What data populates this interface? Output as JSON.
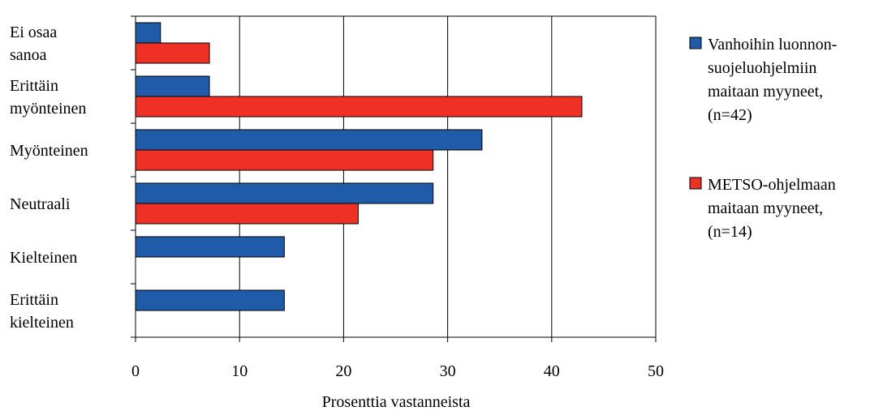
{
  "chart_data": {
    "type": "bar",
    "orientation": "horizontal",
    "categories": [
      [
        "Ei osaa",
        "sanoa"
      ],
      [
        "Erittäin",
        "myönteinen"
      ],
      [
        "Myönteinen"
      ],
      [
        "Neutraali"
      ],
      [
        "Kielteinen"
      ],
      [
        "Erittäin",
        "kielteinen"
      ]
    ],
    "series": [
      {
        "name_lines": [
          "Vanhoihin luonnon-",
          "suojeluohjelmiin",
          "maitaan myyneet,",
          "(n=42)"
        ],
        "color": "#1F5BA8",
        "values": [
          2.4,
          7.1,
          33.3,
          28.6,
          14.3,
          14.3
        ]
      },
      {
        "name_lines": [
          "METSO-ohjelmaan",
          "maitaan myyneet,",
          "(n=14)"
        ],
        "color": "#EE3124",
        "values": [
          7.1,
          42.9,
          28.6,
          21.4,
          0,
          0
        ]
      }
    ],
    "xlim": [
      0,
      50
    ],
    "xticks": [
      "0",
      "10",
      "20",
      "30",
      "40",
      "50"
    ],
    "xlabel": "Prosenttia vastanneista",
    "grid": "vertical",
    "legend_position": "right"
  }
}
